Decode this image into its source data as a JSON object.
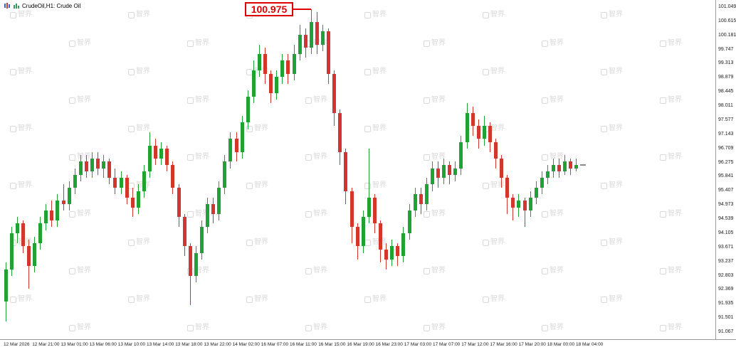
{
  "titlebar": {
    "symbol_title": "CrudeOil,H1: Crude Oil",
    "icons": [
      {
        "name": "candlestick-chart-icon"
      },
      {
        "name": "bar-chart-icon"
      }
    ]
  },
  "watermark": {
    "text": "智界"
  },
  "colors": {
    "up": "#1fa233",
    "down": "#d3362c",
    "callout": "#e00000",
    "axis_text": "#1a1a1a",
    "axis_line": "#9a9a9a",
    "watermark": "#dadada"
  },
  "chart_data": {
    "type": "candlestick",
    "symbol": "Crude Oil",
    "timeframe": "H1",
    "title": "CrudeOil,H1: Crude Oil",
    "annotation": {
      "text": "100.975",
      "price": 100.975,
      "note": "high-price callout at chart top"
    },
    "legend_position": "none",
    "grid": false,
    "y_axis": {
      "min": 91.067,
      "max": 101.049,
      "step": 0.434,
      "labels": [
        "101.049",
        "100.615",
        "100.181",
        "99.747",
        "99.313",
        "98.879",
        "98.445",
        "98.011",
        "97.577",
        "97.143",
        "96.709",
        "96.275",
        "95.841",
        "95.407",
        "94.973",
        "94.539",
        "94.105",
        "93.671",
        "93.237",
        "92.803",
        "92.369",
        "91.935",
        "91.501",
        "91.067"
      ]
    },
    "x_axis": {
      "labels": [
        "12 Mar 2026",
        "12 Mar 21:00",
        "13 Mar 01:00",
        "13 Mar 06:00",
        "13 Mar 10:00",
        "13 Mar 14:00",
        "13 Mar 18:00",
        "13 Mar 22:00",
        "14 Mar 02:00",
        "16 Mar 07:00",
        "16 Mar 11:00",
        "16 Mar 15:00",
        "16 Mar 19:00",
        "16 Mar 23:00",
        "17 Mar 03:00",
        "17 Mar 07:00",
        "17 Mar 12:00",
        "17 Mar 16:00",
        "17 Mar 20:00",
        "18 Mar 00:00",
        "18 Mar 04:00"
      ]
    },
    "candle_format": [
      "open",
      "high",
      "low",
      "close"
    ],
    "candles": [
      [
        92.0,
        93.2,
        91.4,
        93.0
      ],
      [
        93.0,
        94.3,
        92.8,
        94.1
      ],
      [
        94.1,
        94.6,
        93.8,
        94.4
      ],
      [
        94.4,
        94.5,
        93.5,
        93.7
      ],
      [
        93.7,
        93.9,
        92.4,
        93.1
      ],
      [
        93.1,
        94.0,
        92.9,
        93.8
      ],
      [
        93.8,
        94.6,
        93.6,
        94.4
      ],
      [
        94.4,
        95.0,
        94.2,
        94.8
      ],
      [
        94.8,
        95.1,
        94.3,
        94.5
      ],
      [
        94.5,
        95.3,
        94.3,
        95.1
      ],
      [
        95.1,
        95.6,
        94.8,
        95.0
      ],
      [
        95.0,
        95.7,
        94.8,
        95.5
      ],
      [
        95.5,
        96.1,
        95.3,
        95.9
      ],
      [
        95.9,
        96.5,
        95.7,
        96.3
      ],
      [
        96.3,
        96.5,
        95.8,
        96.0
      ],
      [
        96.0,
        96.6,
        95.8,
        96.4
      ],
      [
        96.4,
        96.6,
        95.9,
        96.1
      ],
      [
        96.1,
        96.5,
        95.8,
        96.3
      ],
      [
        96.3,
        96.4,
        95.6,
        95.8
      ],
      [
        95.8,
        96.1,
        95.3,
        95.5
      ],
      [
        95.5,
        96.0,
        95.3,
        95.8
      ],
      [
        95.8,
        95.9,
        95.0,
        95.2
      ],
      [
        95.2,
        95.5,
        94.6,
        94.9
      ],
      [
        94.9,
        95.6,
        94.7,
        95.4
      ],
      [
        95.4,
        96.2,
        95.2,
        96.0
      ],
      [
        96.0,
        97.2,
        95.8,
        96.8
      ],
      [
        96.8,
        97.0,
        96.2,
        96.4
      ],
      [
        96.4,
        96.9,
        96.2,
        96.7
      ],
      [
        96.7,
        96.8,
        96.0,
        96.2
      ],
      [
        96.2,
        96.3,
        95.3,
        95.5
      ],
      [
        95.5,
        95.6,
        94.3,
        94.6
      ],
      [
        94.6,
        94.7,
        93.4,
        93.7
      ],
      [
        93.7,
        93.8,
        91.9,
        92.8
      ],
      [
        92.8,
        93.7,
        92.6,
        93.5
      ],
      [
        93.5,
        94.5,
        93.3,
        94.3
      ],
      [
        94.3,
        95.2,
        94.1,
        95.0
      ],
      [
        95.0,
        95.2,
        94.4,
        94.7
      ],
      [
        94.7,
        95.7,
        94.5,
        95.5
      ],
      [
        95.5,
        96.5,
        95.3,
        96.3
      ],
      [
        96.3,
        97.2,
        96.1,
        97.0
      ],
      [
        97.0,
        97.2,
        96.3,
        96.6
      ],
      [
        96.6,
        97.7,
        96.4,
        97.5
      ],
      [
        97.5,
        98.5,
        97.3,
        98.3
      ],
      [
        98.3,
        99.4,
        98.1,
        99.1
      ],
      [
        99.1,
        99.9,
        98.9,
        99.6
      ],
      [
        99.6,
        99.8,
        98.7,
        99.0
      ],
      [
        99.0,
        99.1,
        98.1,
        98.4
      ],
      [
        98.4,
        99.1,
        98.2,
        98.9
      ],
      [
        98.9,
        99.6,
        98.7,
        99.4
      ],
      [
        99.4,
        99.6,
        98.7,
        99.0
      ],
      [
        99.0,
        99.9,
        98.8,
        99.6
      ],
      [
        99.6,
        100.5,
        99.4,
        100.2
      ],
      [
        100.2,
        100.4,
        99.5,
        99.8
      ],
      [
        99.8,
        100.975,
        99.6,
        100.6
      ],
      [
        100.6,
        100.9,
        99.6,
        99.9
      ],
      [
        99.9,
        100.5,
        99.7,
        100.3
      ],
      [
        100.3,
        100.4,
        98.7,
        99.0
      ],
      [
        99.0,
        99.1,
        97.4,
        97.8
      ],
      [
        97.8,
        97.9,
        96.2,
        96.6
      ],
      [
        96.6,
        96.7,
        95.0,
        95.4
      ],
      [
        95.4,
        95.5,
        93.8,
        94.3
      ],
      [
        94.3,
        94.4,
        93.3,
        93.7
      ],
      [
        93.7,
        94.8,
        93.5,
        94.6
      ],
      [
        94.6,
        96.7,
        94.4,
        95.2
      ],
      [
        95.2,
        95.3,
        94.1,
        94.4
      ],
      [
        94.4,
        94.5,
        93.2,
        93.6
      ],
      [
        93.6,
        93.8,
        93.0,
        93.3
      ],
      [
        93.3,
        93.9,
        93.1,
        93.7
      ],
      [
        93.7,
        93.8,
        93.1,
        93.4
      ],
      [
        93.4,
        94.3,
        93.2,
        94.1
      ],
      [
        94.1,
        95.0,
        93.9,
        94.8
      ],
      [
        94.8,
        95.5,
        94.6,
        95.3
      ],
      [
        95.3,
        95.5,
        94.7,
        95.0
      ],
      [
        95.0,
        95.8,
        94.8,
        95.6
      ],
      [
        95.6,
        96.3,
        95.4,
        96.1
      ],
      [
        96.1,
        96.3,
        95.5,
        95.8
      ],
      [
        95.8,
        96.4,
        95.6,
        96.2
      ],
      [
        96.2,
        96.3,
        95.6,
        95.9
      ],
      [
        95.9,
        96.3,
        95.7,
        96.1
      ],
      [
        96.1,
        97.1,
        95.9,
        96.9
      ],
      [
        96.9,
        98.1,
        96.7,
        97.8
      ],
      [
        97.8,
        98.0,
        97.1,
        97.4
      ],
      [
        97.4,
        97.6,
        96.7,
        97.0
      ],
      [
        97.0,
        97.7,
        96.8,
        97.4
      ],
      [
        97.4,
        97.5,
        96.6,
        96.9
      ],
      [
        96.9,
        97.0,
        96.1,
        96.4
      ],
      [
        96.4,
        96.5,
        95.5,
        95.8
      ],
      [
        95.8,
        95.9,
        94.7,
        95.2
      ],
      [
        95.2,
        95.3,
        94.5,
        94.9
      ],
      [
        94.9,
        95.3,
        94.6,
        95.1
      ],
      [
        95.1,
        95.2,
        94.3,
        94.8
      ],
      [
        94.8,
        95.4,
        94.6,
        95.2
      ],
      [
        95.2,
        95.7,
        95.0,
        95.5
      ],
      [
        95.5,
        96.0,
        95.3,
        95.8
      ],
      [
        95.8,
        96.2,
        95.6,
        96.0
      ],
      [
        96.0,
        96.4,
        95.8,
        96.2
      ],
      [
        96.2,
        96.4,
        95.8,
        96.0
      ],
      [
        96.0,
        96.5,
        95.9,
        96.3
      ],
      [
        96.3,
        96.4,
        95.9,
        96.1
      ],
      [
        96.1,
        96.4,
        96.0,
        96.2
      ]
    ],
    "up_color": "#1fa233",
    "down_color": "#d3362c"
  }
}
